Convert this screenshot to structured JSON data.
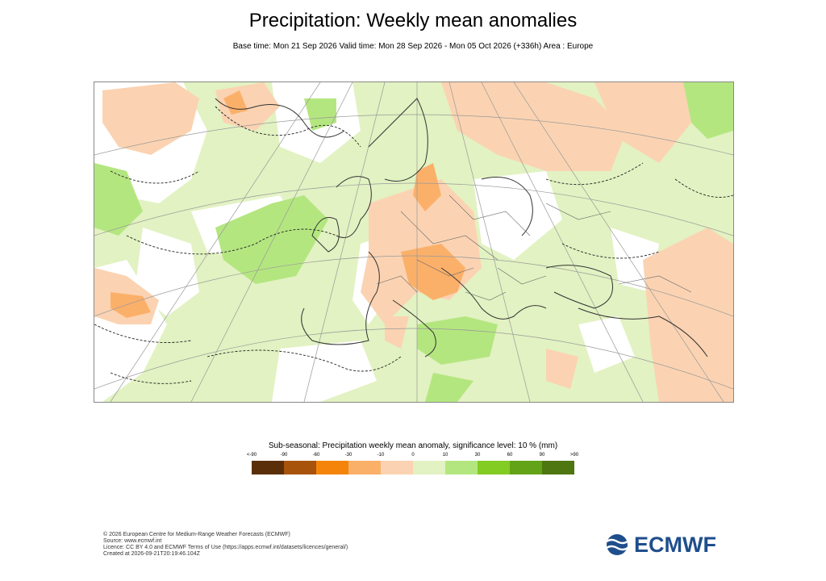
{
  "header": {
    "title": "Precipitation: Weekly mean anomalies",
    "subtitle": "Base time: Mon 21 Sep 2026 Valid time: Mon 28 Sep 2026 - Mon 05 Oct 2026 (+336h) Area : Europe"
  },
  "legend": {
    "title": "Sub-seasonal: Precipitation weekly mean anomaly, significance level: 10 % (mm)",
    "ticks": [
      "<-90",
      "-90",
      "-60",
      "-30",
      "-10",
      "0",
      "10",
      "30",
      "60",
      "90",
      ">90"
    ],
    "colors": [
      "#5a2e08",
      "#a8530c",
      "#f5850a",
      "#fbb06a",
      "#fbd3b2",
      "#e2f2c2",
      "#b4e680",
      "#82cc23",
      "#63a318",
      "#4e7611"
    ]
  },
  "map_colors": {
    "dry_light": "#fbd3b2",
    "dry_medium": "#fbb06a",
    "wet_light": "#e2f2c2",
    "wet_medium": "#b4e680",
    "coast": "#333333",
    "border": "#666666",
    "grid": "#999999"
  },
  "footer": {
    "copyright": "© 2026 European Centre for Medium-Range Weather Forecasts (ECMWF)",
    "source": "Source: www.ecmwf.int",
    "licence": "Licence: CC BY 4.0 and ECMWF Terms of Use (https://apps.ecmwf.int/datasets/licences/general/)",
    "created": "Created at 2026-09-21T20:19:46.104Z"
  },
  "logo": {
    "text": "ECMWF",
    "icon": "ecmwf-logo-icon",
    "color": "#1f4e8c"
  }
}
